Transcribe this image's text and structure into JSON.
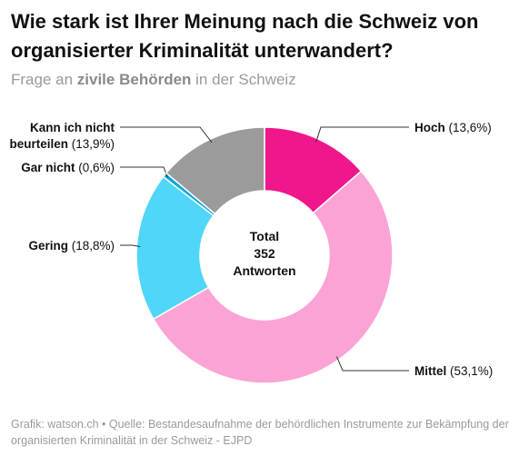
{
  "title": "Wie stark ist Ihrer Meinung nach die Schweiz von organisierter Kriminalität unterwandert?",
  "subtitle": {
    "prefix": "Frage an",
    "emphasis": "zivile Behörden",
    "suffix": "in der Schweiz"
  },
  "footer": "Grafik: watson.ch • Quelle: Bestandesaufnahme der behördlichen Instrumente zur Bekämpfung der organisierten Kriminalität in der Schweiz - EJPD",
  "chart_data": {
    "type": "pie",
    "donut": true,
    "center_label": [
      "Total",
      "352",
      "Antworten"
    ],
    "slices": [
      {
        "label": "Hoch",
        "value": 13.6,
        "display": "Hoch (13,6%)",
        "color": "#f0168c"
      },
      {
        "label": "Mittel",
        "value": 53.1,
        "display": "Mittel (53,1%)",
        "color": "#fba3d4"
      },
      {
        "label": "Gering",
        "value": 18.8,
        "display": "Gering (18,8%)",
        "color": "#4fd6f8"
      },
      {
        "label": "Gar nicht",
        "value": 0.6,
        "display": "Gar nicht (0,6%)",
        "color": "#12a7e0"
      },
      {
        "label": "Kann ich nicht beurteilen",
        "value": 13.9,
        "display_lines": [
          "Kann ich nicht",
          "beurteilen (13,9%)"
        ],
        "color": "#9b9b9b"
      }
    ]
  }
}
